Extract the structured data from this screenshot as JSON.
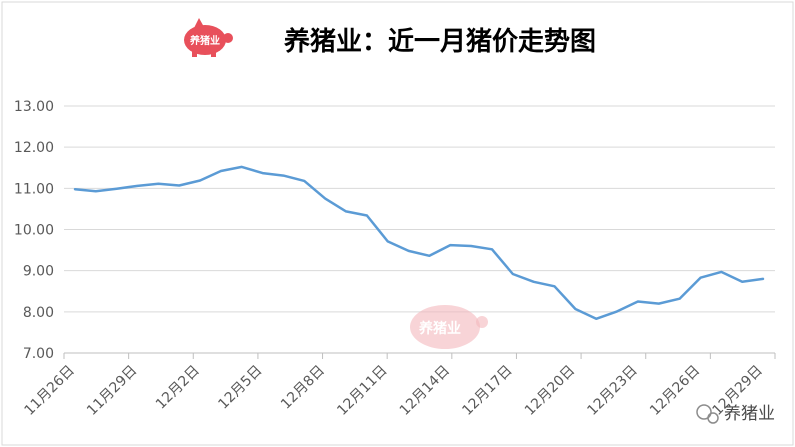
{
  "chart_data": {
    "type": "line",
    "title": "养猪业：近一月猪价走势图",
    "logo_text": "养猪业",
    "watermark_text": "养猪业",
    "footer_text": "养猪业",
    "x": [
      "11月26日",
      "11月27日",
      "11月28日",
      "11月29日",
      "11月30日",
      "12月1日",
      "12月2日",
      "12月3日",
      "12月4日",
      "12月5日",
      "12月6日",
      "12月7日",
      "12月8日",
      "12月9日",
      "12月10日",
      "12月11日",
      "12月12日",
      "12月13日",
      "12月14日",
      "12月15日",
      "12月16日",
      "12月17日",
      "12月18日",
      "12月19日",
      "12月20日",
      "12月21日",
      "12月22日",
      "12月23日",
      "12月24日",
      "12月25日",
      "12月26日",
      "12月27日",
      "12月28日",
      "12月29日"
    ],
    "xtick_labels": [
      "11月26日",
      "11月29日",
      "12月2日",
      "12月5日",
      "12月8日",
      "12月11日",
      "12月14日",
      "12月17日",
      "12月20日",
      "12月23日",
      "12月26日",
      "12月29日"
    ],
    "series": [
      {
        "values": [
          10.98,
          10.93,
          10.99,
          11.06,
          11.11,
          11.07,
          11.19,
          11.42,
          11.52,
          11.37,
          11.31,
          11.18,
          10.75,
          10.44,
          10.34,
          9.71,
          9.48,
          9.36,
          9.62,
          9.6,
          9.52,
          8.92,
          8.73,
          8.62,
          8.07,
          7.83,
          8.01,
          8.25,
          8.2,
          8.32,
          8.83,
          8.97,
          8.73,
          8.8
        ]
      }
    ],
    "yticks": [
      "7.00",
      "8.00",
      "9.00",
      "10.00",
      "11.00",
      "12.00",
      "13.00"
    ],
    "ylim": [
      7,
      13
    ],
    "grid": true,
    "colors": {
      "line": "#5b9bd5",
      "grid": "#d9d9d9",
      "axis": "#bfbfbf",
      "label": "#595959",
      "logo": "#e8505b",
      "watermark": "#f4b8bd"
    }
  }
}
